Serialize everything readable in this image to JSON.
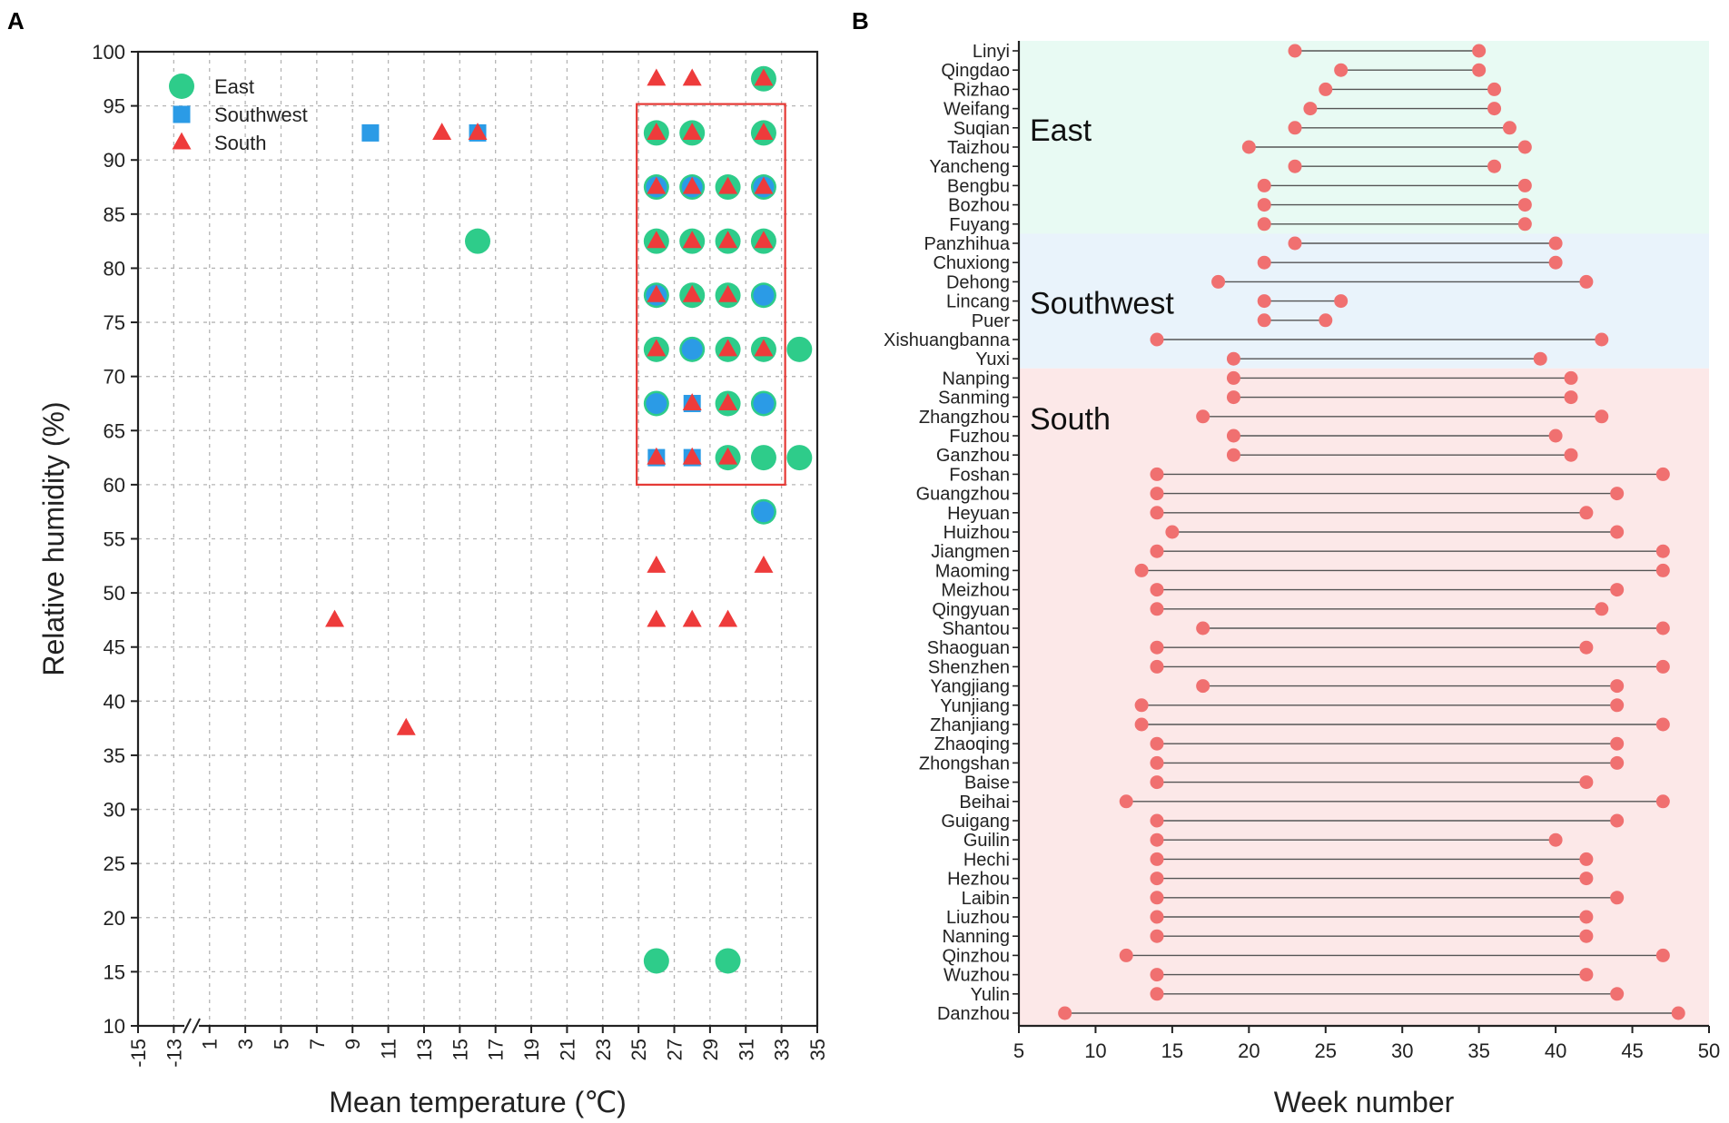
{
  "chart_data": [
    {
      "panel": "A",
      "type": "scatter",
      "xlabel": "Mean temperature (℃)",
      "ylabel": "Relative humidity (%)",
      "x_ticks": [
        "-15",
        "-13",
        "1",
        "3",
        "5",
        "7",
        "9",
        "11",
        "13",
        "15",
        "17",
        "19",
        "21",
        "23",
        "25",
        "27",
        "29",
        "31",
        "33",
        "35"
      ],
      "ylim": [
        10,
        100
      ],
      "y_ticks": [
        10,
        15,
        20,
        25,
        30,
        35,
        40,
        45,
        50,
        55,
        60,
        65,
        70,
        75,
        80,
        85,
        90,
        95,
        100
      ],
      "grid": true,
      "axis_break": "between -13 and 1",
      "legend": [
        {
          "name": "East",
          "shape": "circle",
          "color": "#2ecc8a"
        },
        {
          "name": "Southwest",
          "shape": "square",
          "color": "#2b9be6"
        },
        {
          "name": "South",
          "shape": "triangle",
          "color": "#ee3b3b"
        }
      ],
      "highlight_box": {
        "x_range": [
          25,
          33
        ],
        "y_range": [
          60,
          95
        ],
        "color": "#e53935"
      },
      "series": [
        {
          "name": "East",
          "points": [
            [
              32,
              97.5
            ],
            [
              26,
              92.5
            ],
            [
              28,
              92.5
            ],
            [
              32,
              92.5
            ],
            [
              26,
              87.5
            ],
            [
              28,
              87.5
            ],
            [
              30,
              87.5
            ],
            [
              32,
              87.5
            ],
            [
              16,
              82.5
            ],
            [
              26,
              82.5
            ],
            [
              28,
              82.5
            ],
            [
              30,
              82.5
            ],
            [
              32,
              82.5
            ],
            [
              26,
              77.5
            ],
            [
              28,
              77.5
            ],
            [
              30,
              77.5
            ],
            [
              32,
              77.5
            ],
            [
              26,
              72.5
            ],
            [
              28,
              72.5
            ],
            [
              30,
              72.5
            ],
            [
              32,
              72.5
            ],
            [
              34,
              72.5
            ],
            [
              26,
              67.5
            ],
            [
              30,
              67.5
            ],
            [
              32,
              67.5
            ],
            [
              30,
              62.5
            ],
            [
              32,
              62.5
            ],
            [
              34,
              62.5
            ],
            [
              32,
              57.5
            ],
            [
              26,
              16
            ],
            [
              30,
              16
            ]
          ]
        },
        {
          "name": "Southwest",
          "points": [
            [
              10,
              92.5
            ],
            [
              16,
              92.5
            ],
            [
              26,
              87.5
            ],
            [
              28,
              87.5
            ],
            [
              32,
              87.5
            ],
            [
              26,
              77.5
            ],
            [
              32,
              77.5
            ],
            [
              28,
              72.5
            ],
            [
              26,
              67.5
            ],
            [
              28,
              67.5
            ],
            [
              32,
              67.5
            ],
            [
              26,
              62.5
            ],
            [
              28,
              62.5
            ],
            [
              32,
              57.5
            ]
          ]
        },
        {
          "name": "South",
          "points": [
            [
              26,
              97.5
            ],
            [
              28,
              97.5
            ],
            [
              32,
              97.5
            ],
            [
              14,
              92.5
            ],
            [
              16,
              92.5
            ],
            [
              26,
              92.5
            ],
            [
              28,
              92.5
            ],
            [
              32,
              92.5
            ],
            [
              26,
              87.5
            ],
            [
              28,
              87.5
            ],
            [
              30,
              87.5
            ],
            [
              32,
              87.5
            ],
            [
              26,
              82.5
            ],
            [
              28,
              82.5
            ],
            [
              30,
              82.5
            ],
            [
              32,
              82.5
            ],
            [
              26,
              77.5
            ],
            [
              28,
              77.5
            ],
            [
              30,
              77.5
            ],
            [
              26,
              72.5
            ],
            [
              30,
              72.5
            ],
            [
              32,
              72.5
            ],
            [
              28,
              67.5
            ],
            [
              30,
              67.5
            ],
            [
              26,
              62.5
            ],
            [
              28,
              62.5
            ],
            [
              30,
              62.5
            ],
            [
              26,
              52.5
            ],
            [
              32,
              52.5
            ],
            [
              8,
              47.5
            ],
            [
              26,
              47.5
            ],
            [
              28,
              47.5
            ],
            [
              30,
              47.5
            ],
            [
              12,
              37.5
            ]
          ]
        }
      ]
    },
    {
      "panel": "B",
      "type": "dumbbell",
      "xlabel": "Week number",
      "xlim": [
        5,
        50
      ],
      "x_ticks": [
        5,
        10,
        15,
        20,
        25,
        30,
        35,
        40,
        45,
        50
      ],
      "regions": [
        {
          "name": "East",
          "color": "#e8faf3",
          "cities": [
            [
              "Linyi",
              23,
              35
            ],
            [
              "Qingdao",
              26,
              35
            ],
            [
              "Rizhao",
              25,
              36
            ],
            [
              "Weifang",
              24,
              36
            ],
            [
              "Suqian",
              23,
              37
            ],
            [
              "Taizhou",
              20,
              38
            ],
            [
              "Yancheng",
              23,
              36
            ],
            [
              "Bengbu",
              21,
              38
            ],
            [
              "Bozhou",
              21,
              38
            ],
            [
              "Fuyang",
              21,
              38
            ]
          ]
        },
        {
          "name": "Southwest",
          "color": "#e9f3fb",
          "cities": [
            [
              "Panzhihua",
              23,
              40
            ],
            [
              "Chuxiong",
              21,
              40
            ],
            [
              "Dehong",
              18,
              42
            ],
            [
              "Lincang",
              21,
              26
            ],
            [
              "Puer",
              21,
              25
            ],
            [
              "Xishuangbanna",
              14,
              43
            ],
            [
              "Yuxi",
              19,
              39
            ]
          ]
        },
        {
          "name": "South",
          "color": "#fce8e8",
          "cities": [
            [
              "Nanping",
              19,
              41
            ],
            [
              "Sanming",
              19,
              41
            ],
            [
              "Zhangzhou",
              17,
              43
            ],
            [
              "Fuzhou",
              19,
              40
            ],
            [
              "Ganzhou",
              19,
              41
            ],
            [
              "Foshan",
              14,
              47
            ],
            [
              "Guangzhou",
              14,
              44
            ],
            [
              "Heyuan",
              14,
              42
            ],
            [
              "Huizhou",
              15,
              44
            ],
            [
              "Jiangmen",
              14,
              47
            ],
            [
              "Maoming",
              13,
              47
            ],
            [
              "Meizhou",
              14,
              44
            ],
            [
              "Qingyuan",
              14,
              43
            ],
            [
              "Shantou",
              17,
              47
            ],
            [
              "Shaoguan",
              14,
              42
            ],
            [
              "Shenzhen",
              14,
              47
            ],
            [
              "Yangjiang",
              17,
              44
            ],
            [
              "Yunjiang",
              13,
              44
            ],
            [
              "Zhanjiang",
              13,
              47
            ],
            [
              "Zhaoqing",
              14,
              44
            ],
            [
              "Zhongshan",
              14,
              44
            ],
            [
              "Baise",
              14,
              42
            ],
            [
              "Beihai",
              12,
              47
            ],
            [
              "Guigang",
              14,
              44
            ],
            [
              "Guilin",
              14,
              40
            ],
            [
              "Hechi",
              14,
              42
            ],
            [
              "Hezhou",
              14,
              42
            ],
            [
              "Laibin",
              14,
              44
            ],
            [
              "Liuzhou",
              14,
              42
            ],
            [
              "Nanning",
              14,
              42
            ],
            [
              "Qinzhou",
              12,
              47
            ],
            [
              "Wuzhou",
              14,
              42
            ],
            [
              "Yulin",
              14,
              44
            ],
            [
              "Danzhou",
              8,
              48
            ]
          ]
        }
      ]
    }
  ]
}
